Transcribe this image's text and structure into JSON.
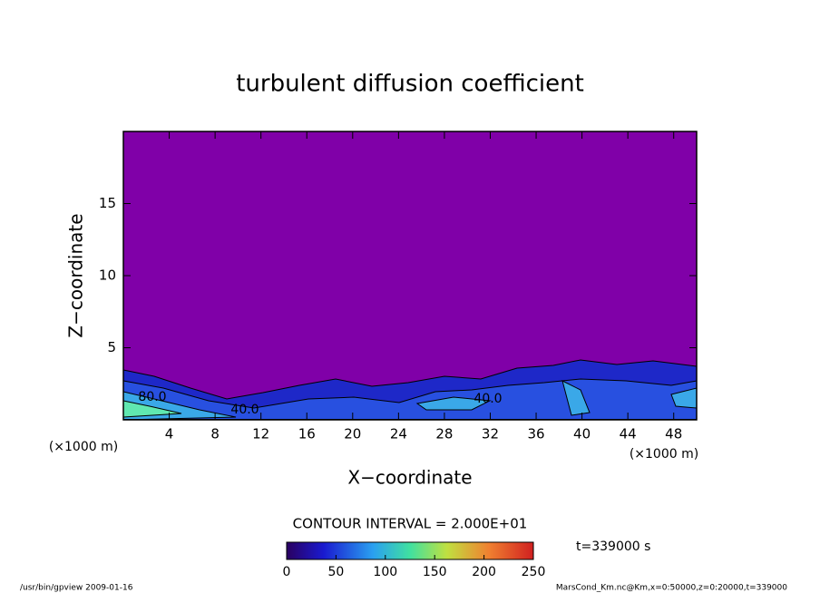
{
  "chart_data": {
    "type": "contour",
    "title": "turbulent diffusion coefficient",
    "x_label": "X−coordinate",
    "y_label": "Z−coordinate",
    "x_unit": "(×1000 m)",
    "y_unit": "(×1000 m)",
    "xlim": [
      0,
      50
    ],
    "xticks": [
      4,
      8,
      12,
      16,
      20,
      24,
      28,
      32,
      36,
      40,
      44,
      48
    ],
    "ylim": [
      0,
      20
    ],
    "yticks": [
      5,
      10,
      15
    ],
    "contour_labels": [
      "80.0",
      "40.0",
      "40.0"
    ],
    "contour_interval": "CONTOUR INTERVAL = 2.000E+01",
    "colorbar": {
      "lim": [
        0,
        250
      ],
      "ticks": [
        0,
        50,
        100,
        150,
        200,
        250
      ]
    },
    "time_label": "t=339000 s",
    "footer_left": "/usr/bin/gpview  2009-01-16",
    "footer_right": "MarsCond_Km.nc@Km,x=0:50000,z=0:20000,t=339000"
  }
}
